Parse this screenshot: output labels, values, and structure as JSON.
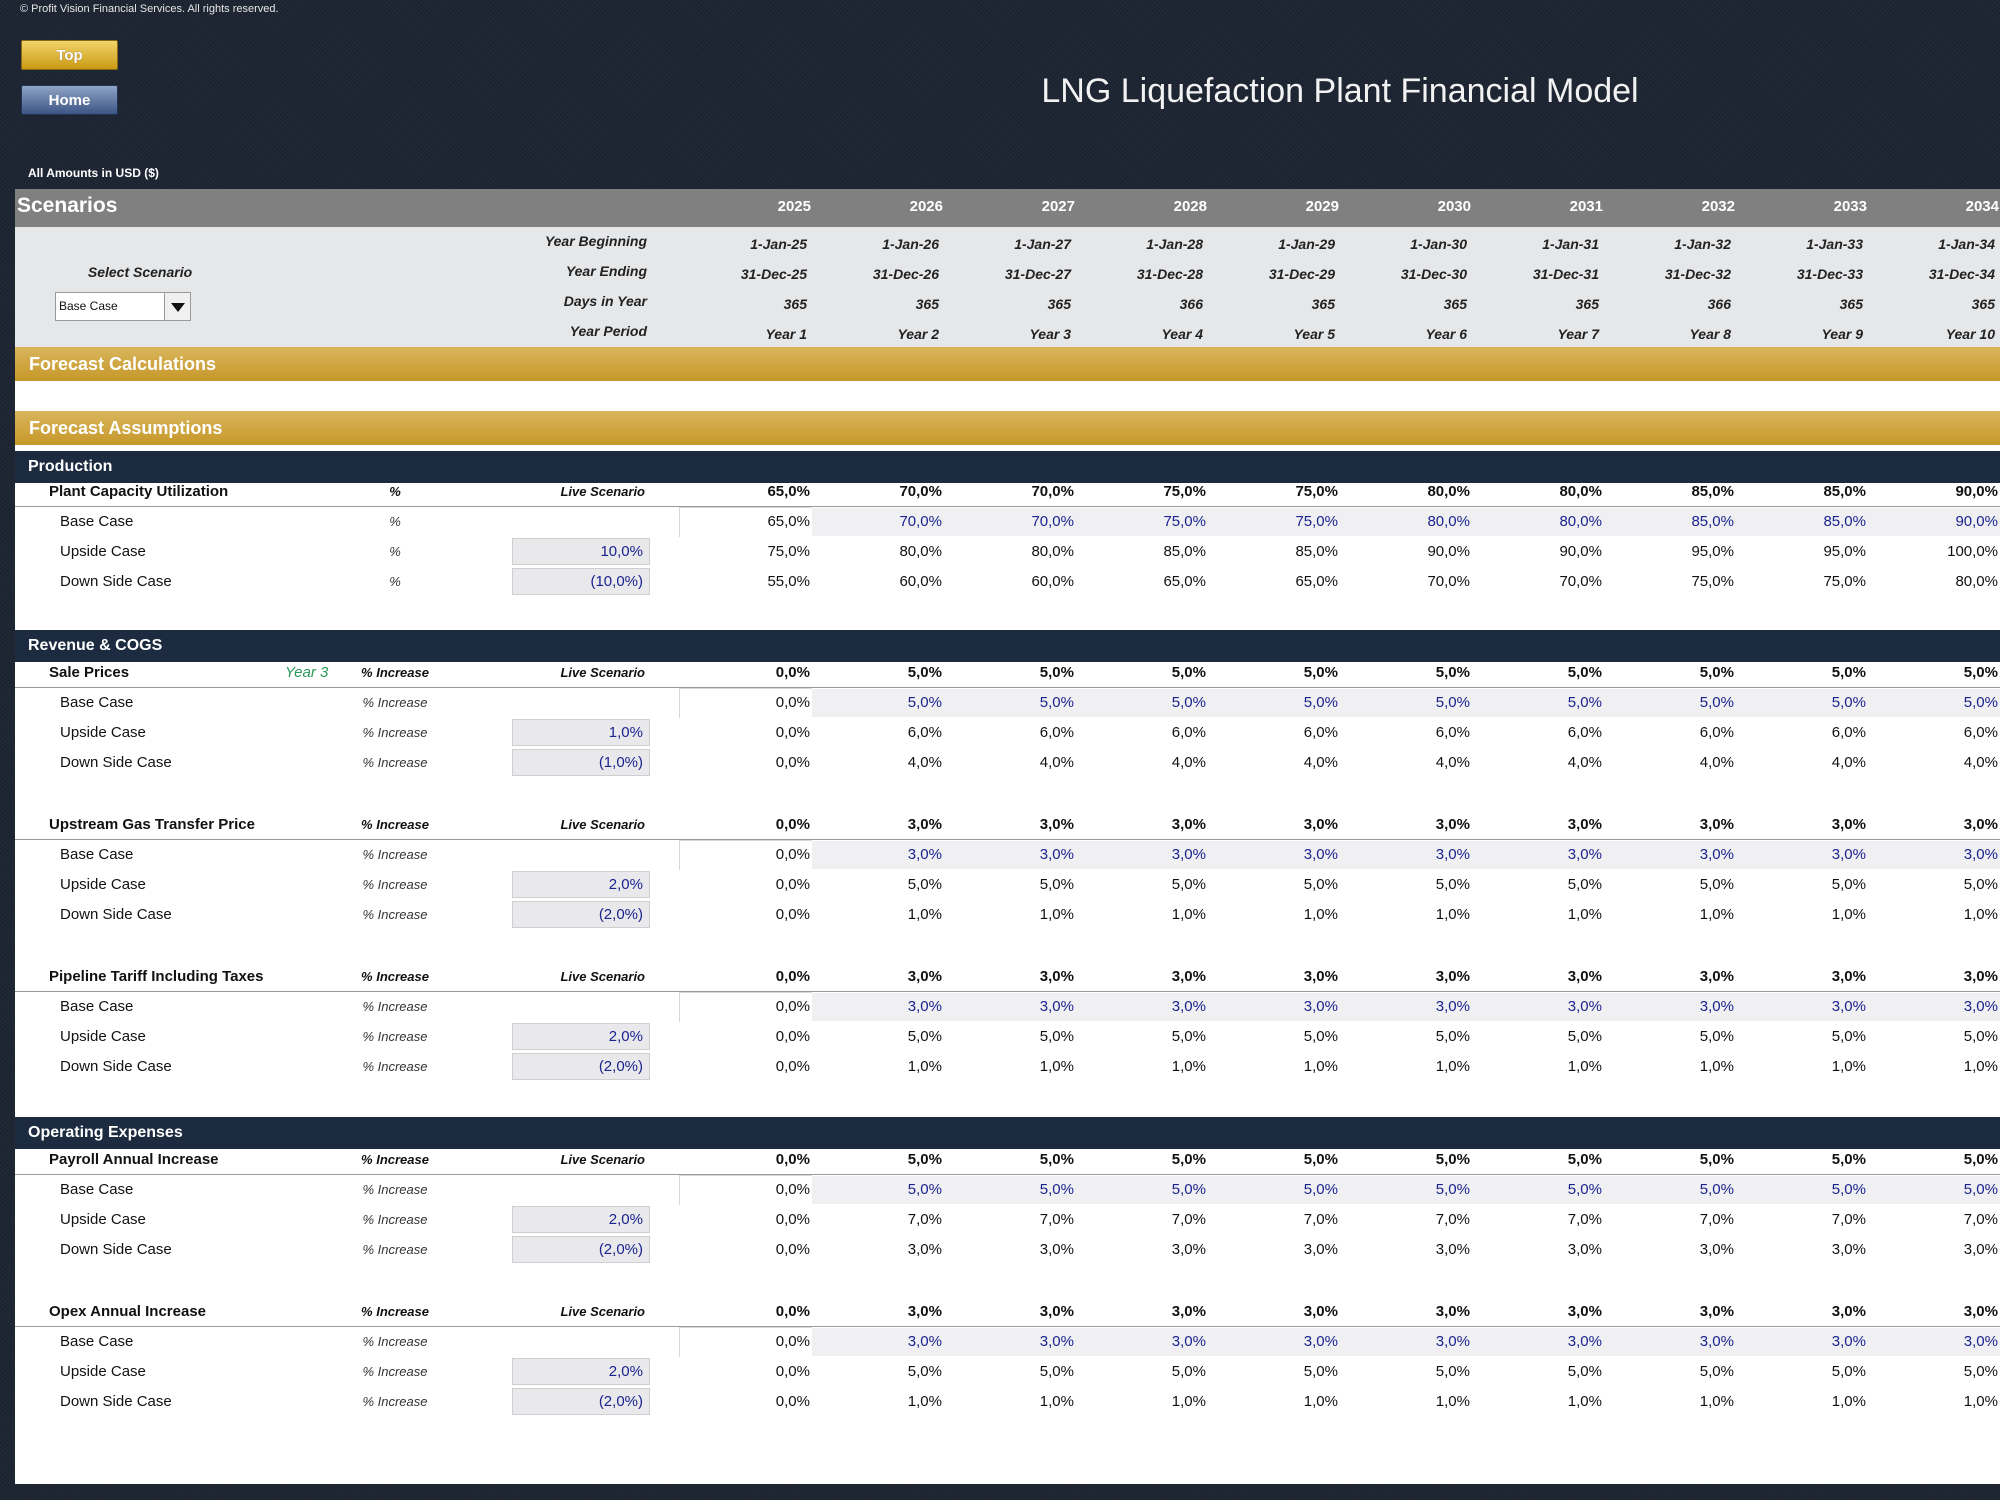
{
  "copyright": "© Profit Vision Financial Services. All rights reserved.",
  "buttons": {
    "top": "Top",
    "home": "Home"
  },
  "title": "LNG Liquefaction Plant Financial Model",
  "amounts_label": "All Amounts in  USD ($)",
  "header": {
    "title": "Scenarios",
    "years": [
      "2025",
      "2026",
      "2027",
      "2028",
      "2029",
      "2030",
      "2031",
      "2032",
      "2033",
      "2034"
    ]
  },
  "info": {
    "labels": [
      "Year Beginning",
      "Year Ending",
      "Days in Year",
      "Year Period"
    ],
    "rows": [
      [
        "1-Jan-25",
        "1-Jan-26",
        "1-Jan-27",
        "1-Jan-28",
        "1-Jan-29",
        "1-Jan-30",
        "1-Jan-31",
        "1-Jan-32",
        "1-Jan-33",
        "1-Jan-34"
      ],
      [
        "31-Dec-25",
        "31-Dec-26",
        "31-Dec-27",
        "31-Dec-28",
        "31-Dec-29",
        "31-Dec-30",
        "31-Dec-31",
        "31-Dec-32",
        "31-Dec-33",
        "31-Dec-34"
      ],
      [
        "365",
        "365",
        "365",
        "366",
        "365",
        "365",
        "365",
        "366",
        "365",
        "365"
      ],
      [
        "Year 1",
        "Year 2",
        "Year 3",
        "Year 4",
        "Year 5",
        "Year 6",
        "Year 7",
        "Year 8",
        "Year 9",
        "Year 10"
      ]
    ]
  },
  "scenario_select": {
    "label": "Select Scenario",
    "value": "Base Case"
  },
  "bands": {
    "calc": "Forecast Calculations",
    "assump": "Forecast Assumptions"
  },
  "sections": [
    {
      "title": "Production",
      "blocks": [
        {
          "label": "Plant Capacity Utilization",
          "unit": "%",
          "live": "Live Scenario",
          "tag": "",
          "values": [
            "65,0%",
            "70,0%",
            "70,0%",
            "75,0%",
            "75,0%",
            "80,0%",
            "80,0%",
            "85,0%",
            "85,0%",
            "90,0%"
          ],
          "cases": [
            {
              "label": "Base Case",
              "unit": "%",
              "input": "",
              "values": [
                "65,0%",
                "70,0%",
                "70,0%",
                "75,0%",
                "75,0%",
                "80,0%",
                "80,0%",
                "85,0%",
                "85,0%",
                "90,0%"
              ]
            },
            {
              "label": "Upside Case",
              "unit": "%",
              "input": "10,0%",
              "values": [
                "75,0%",
                "80,0%",
                "80,0%",
                "85,0%",
                "85,0%",
                "90,0%",
                "90,0%",
                "95,0%",
                "95,0%",
                "100,0%"
              ]
            },
            {
              "label": "Down Side Case",
              "unit": "%",
              "input": "(10,0%)",
              "values": [
                "55,0%",
                "60,0%",
                "60,0%",
                "65,0%",
                "65,0%",
                "70,0%",
                "70,0%",
                "75,0%",
                "75,0%",
                "80,0%"
              ]
            }
          ]
        }
      ]
    },
    {
      "title": "Revenue & COGS",
      "blocks": [
        {
          "label": "Sale Prices",
          "unit": "% Increase",
          "live": "Live Scenario",
          "tag": "Year 3",
          "values": [
            "0,0%",
            "5,0%",
            "5,0%",
            "5,0%",
            "5,0%",
            "5,0%",
            "5,0%",
            "5,0%",
            "5,0%",
            "5,0%"
          ],
          "cases": [
            {
              "label": "Base Case",
              "unit": "% Increase",
              "input": "",
              "values": [
                "0,0%",
                "5,0%",
                "5,0%",
                "5,0%",
                "5,0%",
                "5,0%",
                "5,0%",
                "5,0%",
                "5,0%",
                "5,0%"
              ]
            },
            {
              "label": "Upside Case",
              "unit": "% Increase",
              "input": "1,0%",
              "values": [
                "0,0%",
                "6,0%",
                "6,0%",
                "6,0%",
                "6,0%",
                "6,0%",
                "6,0%",
                "6,0%",
                "6,0%",
                "6,0%"
              ]
            },
            {
              "label": "Down Side Case",
              "unit": "% Increase",
              "input": "(1,0%)",
              "values": [
                "0,0%",
                "4,0%",
                "4,0%",
                "4,0%",
                "4,0%",
                "4,0%",
                "4,0%",
                "4,0%",
                "4,0%",
                "4,0%"
              ]
            }
          ]
        },
        {
          "label": "Upstream Gas Transfer Price",
          "unit": "% Increase",
          "live": "Live Scenario",
          "tag": "",
          "values": [
            "0,0%",
            "3,0%",
            "3,0%",
            "3,0%",
            "3,0%",
            "3,0%",
            "3,0%",
            "3,0%",
            "3,0%",
            "3,0%"
          ],
          "cases": [
            {
              "label": "Base Case",
              "unit": "% Increase",
              "input": "",
              "values": [
                "0,0%",
                "3,0%",
                "3,0%",
                "3,0%",
                "3,0%",
                "3,0%",
                "3,0%",
                "3,0%",
                "3,0%",
                "3,0%"
              ]
            },
            {
              "label": "Upside Case",
              "unit": "% Increase",
              "input": "2,0%",
              "values": [
                "0,0%",
                "5,0%",
                "5,0%",
                "5,0%",
                "5,0%",
                "5,0%",
                "5,0%",
                "5,0%",
                "5,0%",
                "5,0%"
              ]
            },
            {
              "label": "Down Side Case",
              "unit": "% Increase",
              "input": "(2,0%)",
              "values": [
                "0,0%",
                "1,0%",
                "1,0%",
                "1,0%",
                "1,0%",
                "1,0%",
                "1,0%",
                "1,0%",
                "1,0%",
                "1,0%"
              ]
            }
          ]
        },
        {
          "label": "Pipeline Tariff Including Taxes",
          "unit": "% Increase",
          "live": "Live Scenario",
          "tag": "",
          "values": [
            "0,0%",
            "3,0%",
            "3,0%",
            "3,0%",
            "3,0%",
            "3,0%",
            "3,0%",
            "3,0%",
            "3,0%",
            "3,0%"
          ],
          "cases": [
            {
              "label": "Base Case",
              "unit": "% Increase",
              "input": "",
              "values": [
                "0,0%",
                "3,0%",
                "3,0%",
                "3,0%",
                "3,0%",
                "3,0%",
                "3,0%",
                "3,0%",
                "3,0%",
                "3,0%"
              ]
            },
            {
              "label": "Upside Case",
              "unit": "% Increase",
              "input": "2,0%",
              "values": [
                "0,0%",
                "5,0%",
                "5,0%",
                "5,0%",
                "5,0%",
                "5,0%",
                "5,0%",
                "5,0%",
                "5,0%",
                "5,0%"
              ]
            },
            {
              "label": "Down Side Case",
              "unit": "% Increase",
              "input": "(2,0%)",
              "values": [
                "0,0%",
                "1,0%",
                "1,0%",
                "1,0%",
                "1,0%",
                "1,0%",
                "1,0%",
                "1,0%",
                "1,0%",
                "1,0%"
              ]
            }
          ]
        }
      ]
    },
    {
      "title": "Operating Expenses",
      "blocks": [
        {
          "label": "Payroll Annual Increase",
          "unit": "% Increase",
          "live": "Live Scenario",
          "tag": "",
          "values": [
            "0,0%",
            "5,0%",
            "5,0%",
            "5,0%",
            "5,0%",
            "5,0%",
            "5,0%",
            "5,0%",
            "5,0%",
            "5,0%"
          ],
          "cases": [
            {
              "label": "Base Case",
              "unit": "% Increase",
              "input": "",
              "values": [
                "0,0%",
                "5,0%",
                "5,0%",
                "5,0%",
                "5,0%",
                "5,0%",
                "5,0%",
                "5,0%",
                "5,0%",
                "5,0%"
              ]
            },
            {
              "label": "Upside Case",
              "unit": "% Increase",
              "input": "2,0%",
              "values": [
                "0,0%",
                "7,0%",
                "7,0%",
                "7,0%",
                "7,0%",
                "7,0%",
                "7,0%",
                "7,0%",
                "7,0%",
                "7,0%"
              ]
            },
            {
              "label": "Down Side Case",
              "unit": "% Increase",
              "input": "(2,0%)",
              "values": [
                "0,0%",
                "3,0%",
                "3,0%",
                "3,0%",
                "3,0%",
                "3,0%",
                "3,0%",
                "3,0%",
                "3,0%",
                "3,0%"
              ]
            }
          ]
        },
        {
          "label": "Opex Annual Increase",
          "unit": "% Increase",
          "live": "Live Scenario",
          "tag": "",
          "values": [
            "0,0%",
            "3,0%",
            "3,0%",
            "3,0%",
            "3,0%",
            "3,0%",
            "3,0%",
            "3,0%",
            "3,0%",
            "3,0%"
          ],
          "cases": [
            {
              "label": "Base Case",
              "unit": "% Increase",
              "input": "",
              "values": [
                "0,0%",
                "3,0%",
                "3,0%",
                "3,0%",
                "3,0%",
                "3,0%",
                "3,0%",
                "3,0%",
                "3,0%",
                "3,0%"
              ]
            },
            {
              "label": "Upside Case",
              "unit": "% Increase",
              "input": "2,0%",
              "values": [
                "0,0%",
                "5,0%",
                "5,0%",
                "5,0%",
                "5,0%",
                "5,0%",
                "5,0%",
                "5,0%",
                "5,0%",
                "5,0%"
              ]
            },
            {
              "label": "Down Side Case",
              "unit": "% Increase",
              "input": "(2,0%)",
              "values": [
                "0,0%",
                "1,0%",
                "1,0%",
                "1,0%",
                "1,0%",
                "1,0%",
                "1,0%",
                "1,0%",
                "1,0%",
                "1,0%"
              ]
            }
          ]
        }
      ]
    }
  ]
}
